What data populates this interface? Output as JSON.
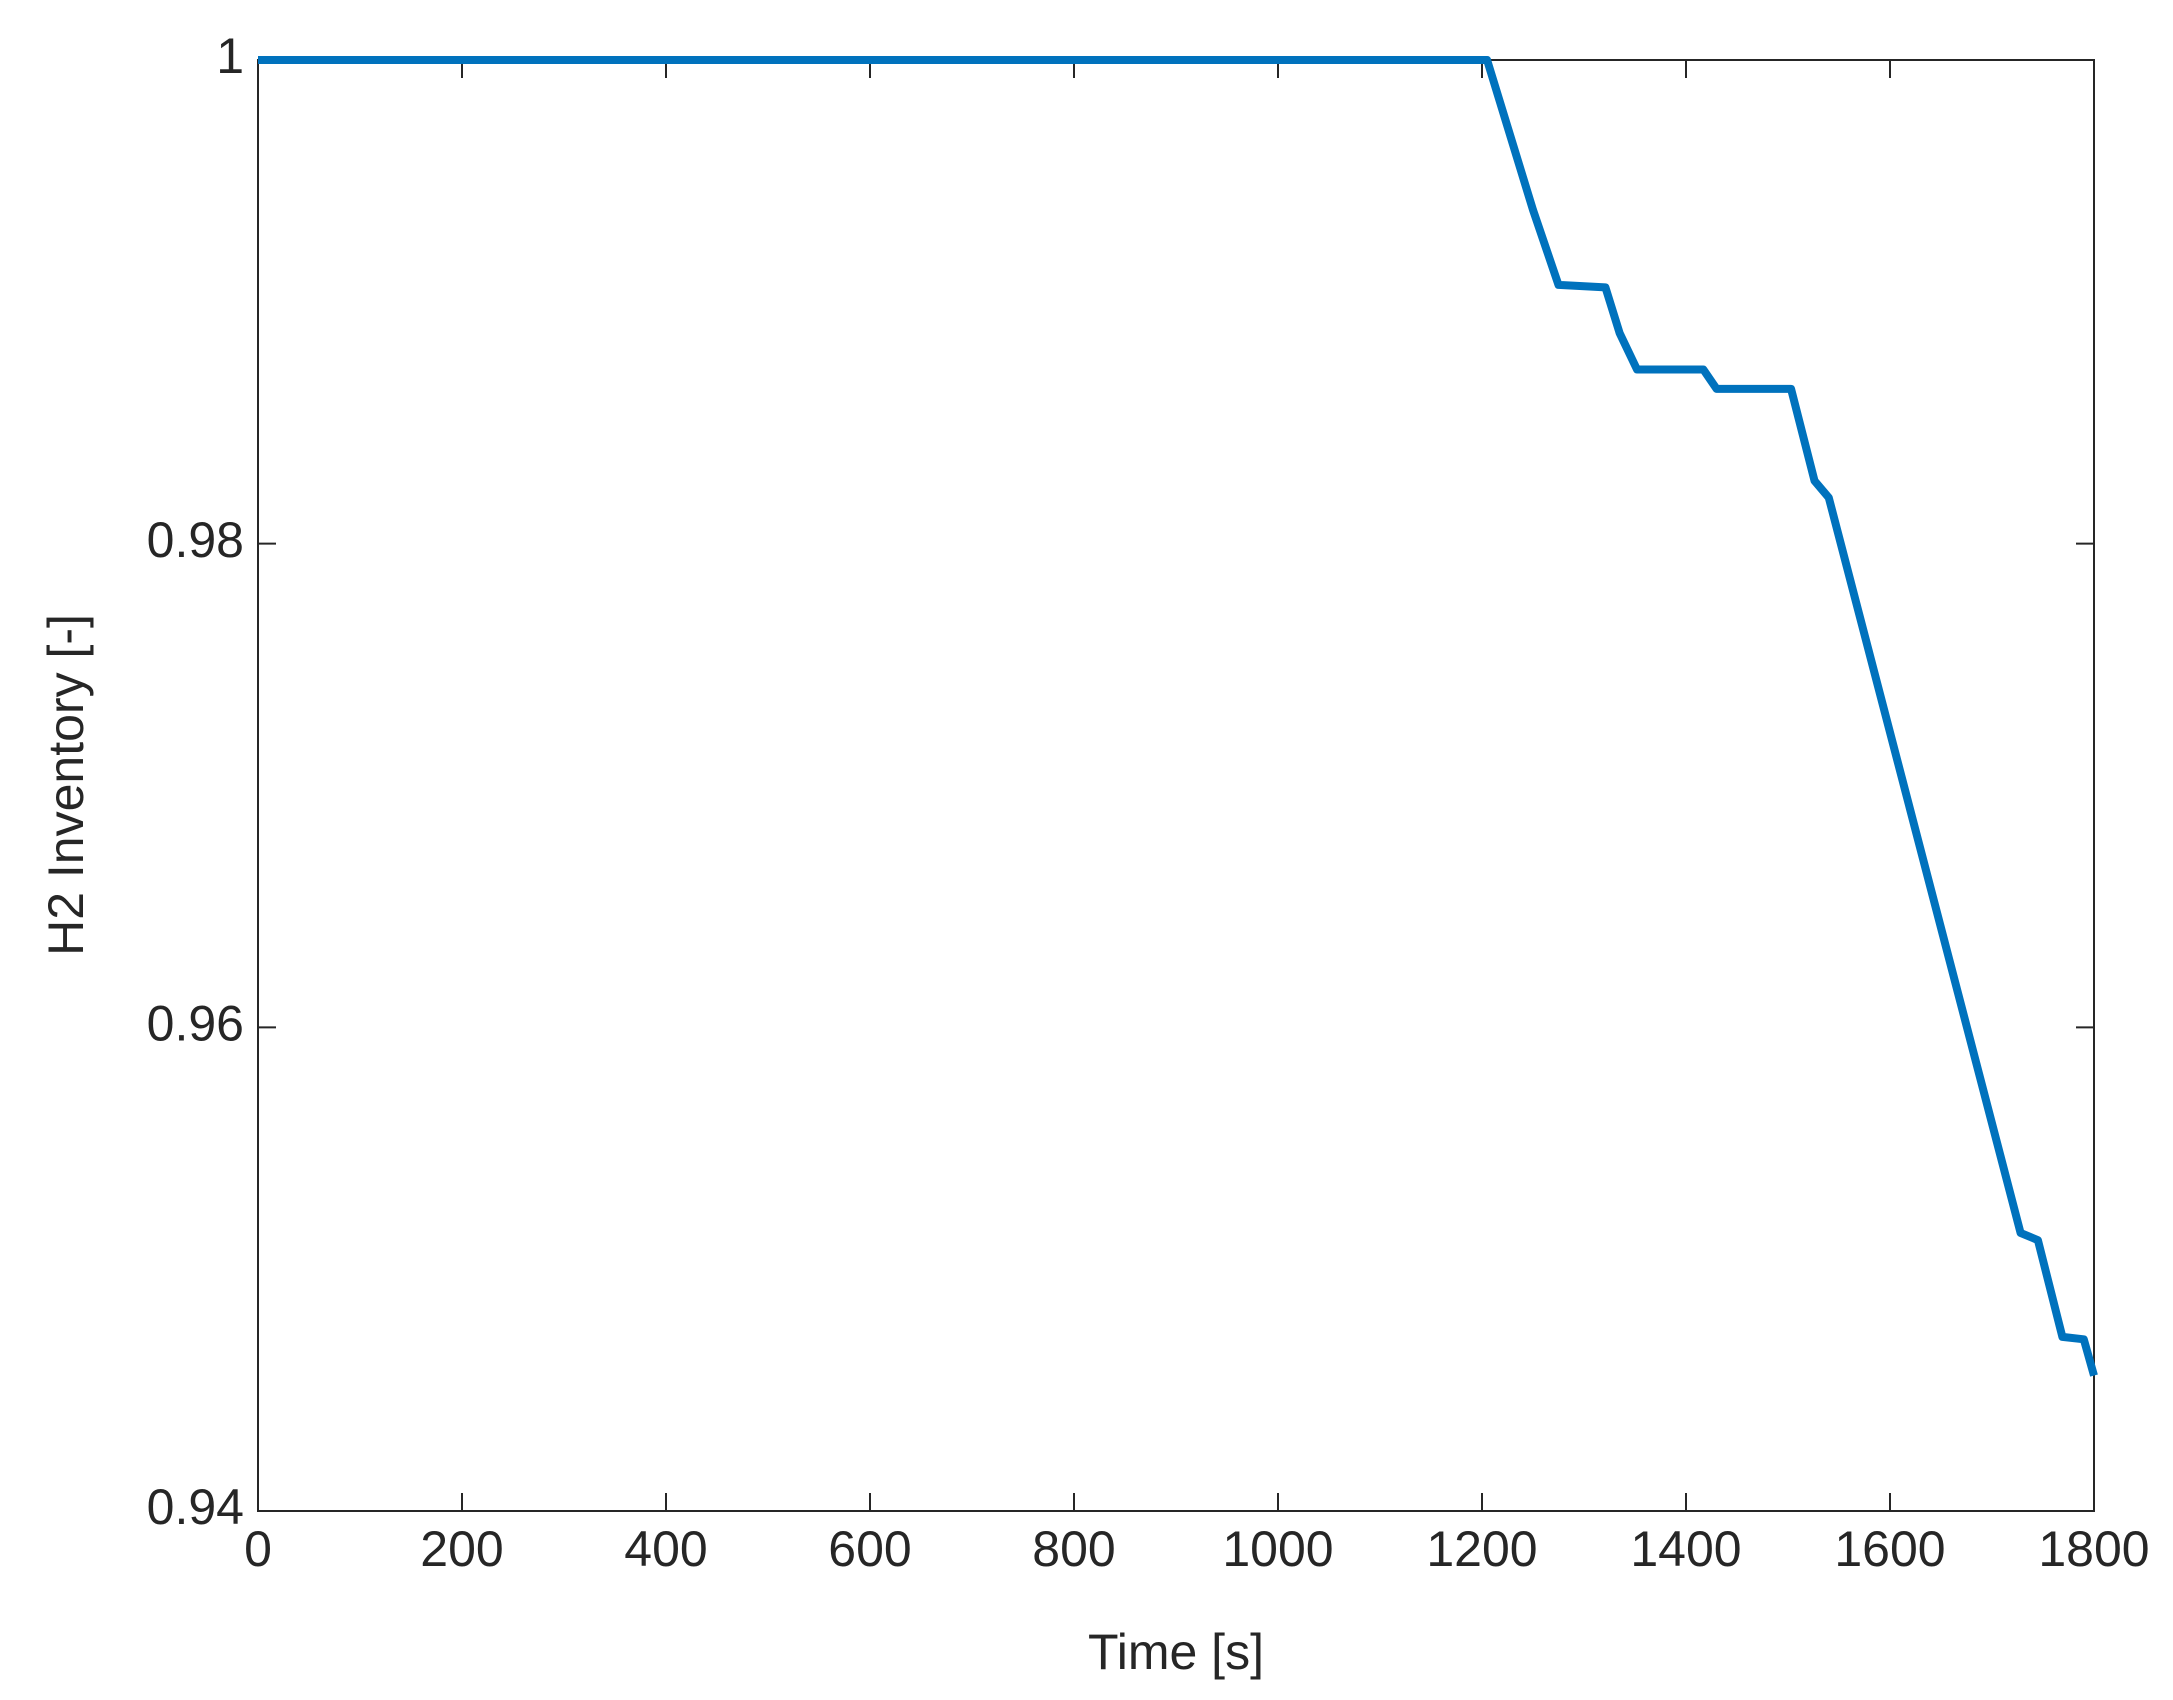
{
  "chart_data": {
    "type": "line",
    "x_label": "Time [s]",
    "y_label": "H2 Inventory [-]",
    "series": [
      {
        "color": "#0072bd",
        "x": [
          0,
          1205,
          1250,
          1275,
          1321,
          1335,
          1352,
          1417,
          1430,
          1503,
          1526,
          1540,
          1728,
          1745,
          1769,
          1790,
          1800
        ],
        "values": [
          1.0,
          1.0,
          0.9938,
          0.9907,
          0.9906,
          0.9887,
          0.9872,
          0.9872,
          0.9864,
          0.9864,
          0.9826,
          0.9819,
          0.9515,
          0.9512,
          0.9472,
          0.9471,
          0.9456
        ]
      }
    ],
    "xlim": [
      0,
      1800
    ],
    "xticks": [
      0,
      200,
      400,
      600,
      800,
      1000,
      1200,
      1400,
      1600,
      1800
    ],
    "ylim": [
      0.94,
      1.0
    ],
    "yticks": [
      0.94,
      0.96,
      0.98,
      1
    ],
    "grid": false
  }
}
